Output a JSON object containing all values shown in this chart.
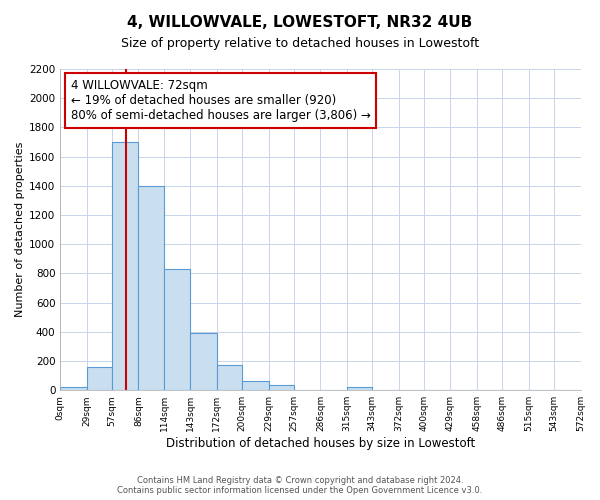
{
  "title": "4, WILLOWVALE, LOWESTOFT, NR32 4UB",
  "subtitle": "Size of property relative to detached houses in Lowestoft",
  "xlabel": "Distribution of detached houses by size in Lowestoft",
  "ylabel": "Number of detached properties",
  "bar_edges": [
    0,
    29,
    57,
    86,
    114,
    143,
    172,
    200,
    229,
    257,
    286,
    315,
    343,
    372,
    400,
    429,
    458,
    486,
    515,
    543,
    572
  ],
  "bar_heights": [
    20,
    160,
    1700,
    1400,
    830,
    390,
    170,
    65,
    35,
    0,
    0,
    25,
    0,
    0,
    0,
    0,
    0,
    0,
    0,
    0
  ],
  "bar_color": "#c9dff0",
  "bar_edgecolor": "#5b9bd5",
  "property_value": 72,
  "vline_color": "#cc0000",
  "annotation_line1": "4 WILLOWVALE: 72sqm",
  "annotation_line2": "← 19% of detached houses are smaller (920)",
  "annotation_line3": "80% of semi-detached houses are larger (3,806) →",
  "annotation_box_edgecolor": "#cc0000",
  "ylim": [
    0,
    2200
  ],
  "yticks": [
    0,
    200,
    400,
    600,
    800,
    1000,
    1200,
    1400,
    1600,
    1800,
    2000,
    2200
  ],
  "tick_labels": [
    "0sqm",
    "29sqm",
    "57sqm",
    "86sqm",
    "114sqm",
    "143sqm",
    "172sqm",
    "200sqm",
    "229sqm",
    "257sqm",
    "286sqm",
    "315sqm",
    "343sqm",
    "372sqm",
    "400sqm",
    "429sqm",
    "458sqm",
    "486sqm",
    "515sqm",
    "543sqm",
    "572sqm"
  ],
  "footnote_line1": "Contains HM Land Registry data © Crown copyright and database right 2024.",
  "footnote_line2": "Contains public sector information licensed under the Open Government Licence v3.0.",
  "background_color": "#ffffff",
  "grid_color": "#c8d4e8"
}
